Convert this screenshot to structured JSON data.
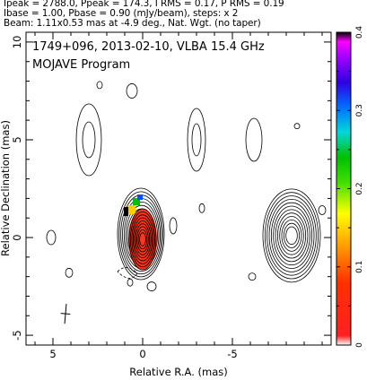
{
  "header": {
    "line1": "Ipeak = 2788.0, Ppeak = 174.3, I RMS = 0.17, P RMS = 0.19",
    "line2": "Ibase = 1.00, Pbase = 0.90 (mJy/beam), steps: x 2",
    "line3": "Beam: 1.11x0.53 mas at -4.9 deg., Nat. Wgt. (no taper)"
  },
  "chart_data": {
    "type": "heatmap",
    "title": "1749+096, 2013-02-10, VLBA 15.4 GHz",
    "subtitle": "MOJAVE Program",
    "xlabel": "Relative R.A. (mas)",
    "ylabel": "Relative Declination (mas)",
    "xlim": [
      6.5,
      -10.5
    ],
    "ylim": [
      -5.5,
      10.5
    ],
    "xticks": [
      5,
      0,
      -5
    ],
    "yticks": [
      -5,
      0,
      5,
      10
    ],
    "colorbar": {
      "min": 0,
      "max": 0.4,
      "ticks": [
        0,
        0.1,
        0.2,
        0.3,
        0.4
      ],
      "tick_labels": [
        "0",
        "0.1",
        "0.2",
        "0.3",
        "0.4"
      ]
    },
    "core": {
      "x": 0,
      "y": 0
    },
    "beam": {
      "major_mas": 1.11,
      "minor_mas": 0.53,
      "pa_deg": -4.9,
      "x": 4.3,
      "y": -3.9
    }
  }
}
